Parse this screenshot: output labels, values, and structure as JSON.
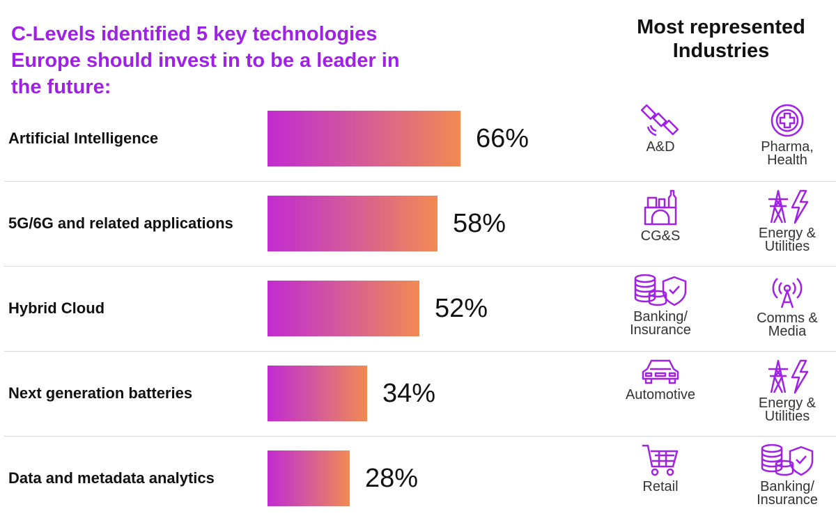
{
  "headline": {
    "line1": "C-Levels identified 5 key technologies",
    "line2": "Europe should invest in to be a leader in",
    "line3": "the future:"
  },
  "industries_title": {
    "line1": "Most represented",
    "line2": "Industries"
  },
  "colors": {
    "accent": "#a020e8",
    "bar_start": "#c22bd0",
    "bar_end": "#f28a52",
    "icon": "#a020e8"
  },
  "chart_data": {
    "type": "bar",
    "orientation": "horizontal",
    "title": "C-Levels identified 5 key technologies Europe should invest in to be a leader in the future:",
    "categories": [
      "Artificial Intelligence",
      "5G/6G and related applications",
      "Hybrid Cloud",
      "Next generation batteries",
      "Data and metadata analytics"
    ],
    "values": [
      66,
      58,
      52,
      34,
      28
    ],
    "value_labels": [
      "66%",
      "58%",
      "52%",
      "34%",
      "28%"
    ],
    "unit": "%",
    "xlim": [
      0,
      100
    ],
    "grid": false
  },
  "rows": [
    {
      "industries": [
        {
          "icon": "satellite-icon",
          "label": [
            "A&D"
          ]
        },
        {
          "icon": "medical-cross-icon",
          "label": [
            "Pharma,",
            "Health"
          ]
        }
      ]
    },
    {
      "industries": [
        {
          "icon": "consumer-goods-icon",
          "label": [
            "CG&S"
          ]
        },
        {
          "icon": "power-tower-icon",
          "label": [
            "Energy &",
            "Utilities"
          ]
        }
      ]
    },
    {
      "industries": [
        {
          "icon": "coins-shield-icon",
          "label": [
            "Banking/",
            "Insurance"
          ]
        },
        {
          "icon": "antenna-icon",
          "label": [
            "Comms &",
            "Media"
          ]
        }
      ]
    },
    {
      "industries": [
        {
          "icon": "car-icon",
          "label": [
            "Automotive"
          ]
        },
        {
          "icon": "power-tower-icon",
          "label": [
            "Energy &",
            "Utilities"
          ]
        }
      ]
    },
    {
      "industries": [
        {
          "icon": "shopping-cart-icon",
          "label": [
            "Retail"
          ]
        },
        {
          "icon": "coins-shield-icon",
          "label": [
            "Banking/",
            "Insurance"
          ]
        }
      ]
    }
  ]
}
